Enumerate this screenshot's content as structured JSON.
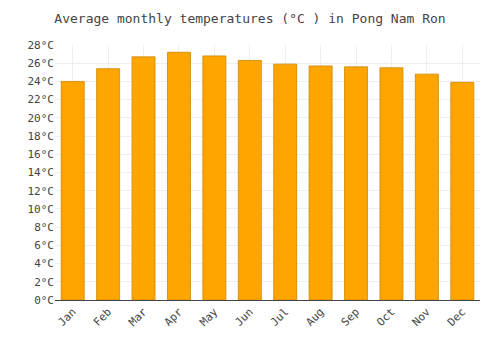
{
  "chart_data": {
    "type": "bar",
    "title": "Average monthly temperatures (°C ) in Pong Nam Ron",
    "categories": [
      "Jan",
      "Feb",
      "Mar",
      "Apr",
      "May",
      "Jun",
      "Jul",
      "Aug",
      "Sep",
      "Oct",
      "Nov",
      "Dec"
    ],
    "values": [
      24.0,
      25.4,
      26.7,
      27.2,
      26.8,
      26.3,
      25.9,
      25.7,
      25.6,
      25.5,
      24.8,
      23.9
    ],
    "color": "#FFA500",
    "ylim": [
      0,
      28
    ],
    "yticks": [
      {
        "value": 0,
        "label": "0°C"
      },
      {
        "value": 2,
        "label": "2°C"
      },
      {
        "value": 4,
        "label": "4°C"
      },
      {
        "value": 6,
        "label": "6°C"
      },
      {
        "value": 8,
        "label": "8°C"
      },
      {
        "value": 10,
        "label": "10°C"
      },
      {
        "value": 12,
        "label": "12°C"
      },
      {
        "value": 14,
        "label": "14°C"
      },
      {
        "value": 16,
        "label": "16°C"
      },
      {
        "value": 18,
        "label": "18°C"
      },
      {
        "value": 20,
        "label": "20°C"
      },
      {
        "value": 22,
        "label": "22°C"
      },
      {
        "value": 24,
        "label": "24°C"
      },
      {
        "value": 26,
        "label": "26°C"
      },
      {
        "value": 28,
        "label": "28°C"
      }
    ],
    "grid": true
  }
}
